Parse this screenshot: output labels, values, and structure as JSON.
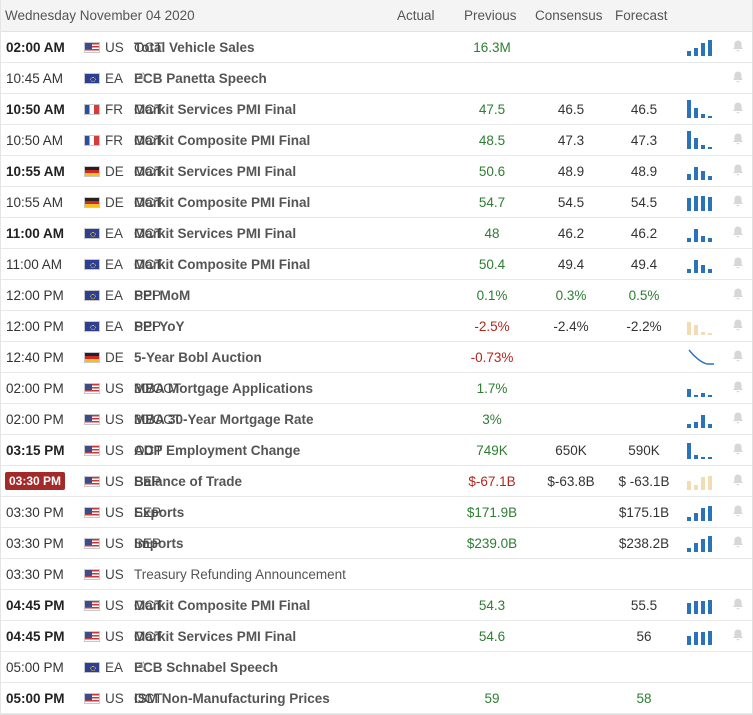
{
  "header": {
    "date": "Wednesday November 04 2020",
    "actual": "Actual",
    "previous": "Previous",
    "consensus": "Consensus",
    "forecast": "Forecast"
  },
  "colors": {
    "positive": "#2e7d32",
    "negative": "#b3261e",
    "bar_blue": "#2a73b8",
    "bar_tan": "#f1dcb4",
    "live_badge": "#a42a2a"
  },
  "events": [
    {
      "time": "02:00 AM",
      "bold": true,
      "country": "US",
      "name": "Total Vehicle Sales",
      "ref": "OCT",
      "previous": "16.3M",
      "prev_cls": "pos",
      "consensus": "",
      "forecast": "",
      "chart": [
        0.3,
        0.45,
        0.7,
        0.9
      ],
      "chart_color": "blue"
    },
    {
      "time": "10:45 AM",
      "bold": false,
      "country": "EA",
      "name": "ECB Panetta Speech",
      "ref": "",
      "speech": true,
      "previous": "",
      "consensus": "",
      "forecast": "",
      "chart": []
    },
    {
      "time": "10:50 AM",
      "bold": true,
      "country": "FR",
      "name": "Markit Services PMI Final",
      "ref": "OCT",
      "previous": "47.5",
      "prev_cls": "pos",
      "consensus": "46.5",
      "forecast": "46.5",
      "chart": [
        1,
        0.55,
        0.2,
        0.1
      ],
      "chart_color": "blue"
    },
    {
      "time": "10:50 AM",
      "bold": false,
      "country": "FR",
      "name": "Markit Composite PMI Final",
      "ref": "OCT",
      "previous": "48.5",
      "prev_cls": "pos",
      "consensus": "47.3",
      "forecast": "47.3",
      "chart": [
        1,
        0.6,
        0.25,
        0.1
      ],
      "chart_color": "blue"
    },
    {
      "time": "10:55 AM",
      "bold": true,
      "country": "DE",
      "name": "Markit Services PMI Final",
      "ref": "OCT",
      "previous": "50.6",
      "prev_cls": "pos",
      "consensus": "48.9",
      "forecast": "48.9",
      "chart": [
        0.35,
        0.75,
        0.5,
        0.25
      ],
      "chart_color": "blue"
    },
    {
      "time": "10:55 AM",
      "bold": false,
      "country": "DE",
      "name": "Markit Composite PMI Final",
      "ref": "OCT",
      "previous": "54.7",
      "prev_cls": "pos",
      "consensus": "54.5",
      "forecast": "54.5",
      "chart": [
        0.7,
        0.85,
        0.85,
        0.8
      ],
      "chart_color": "blue"
    },
    {
      "time": "11:00 AM",
      "bold": true,
      "country": "EA",
      "name": "Markit Services PMI Final",
      "ref": "OCT",
      "previous": "48",
      "prev_cls": "pos",
      "consensus": "46.2",
      "forecast": "46.2",
      "chart": [
        0.25,
        0.7,
        0.35,
        0.2
      ],
      "chart_color": "blue"
    },
    {
      "time": "11:00 AM",
      "bold": false,
      "country": "EA",
      "name": "Markit Composite PMI Final",
      "ref": "OCT",
      "previous": "50.4",
      "prev_cls": "pos",
      "consensus": "49.4",
      "forecast": "49.4",
      "chart": [
        0.2,
        0.7,
        0.45,
        0.2
      ],
      "chart_color": "blue"
    },
    {
      "time": "12:00 PM",
      "bold": false,
      "country": "EA",
      "name": "PPI MoM",
      "ref": "SEP",
      "previous": "0.1%",
      "prev_cls": "pos",
      "consensus": "0.3%",
      "cons_cls": "pos",
      "forecast": "0.5%",
      "fc_cls": "pos",
      "chart": [],
      "chart_color": "blue"
    },
    {
      "time": "12:00 PM",
      "bold": false,
      "country": "EA",
      "name": "PPI YoY",
      "ref": "SEP",
      "previous": "-2.5%",
      "prev_cls": "neg",
      "consensus": "-2.4%",
      "forecast": "-2.2%",
      "chart": [
        0.7,
        0.55,
        0.15,
        0.1
      ],
      "chart_color": "tan"
    },
    {
      "time": "12:40 PM",
      "bold": false,
      "country": "DE",
      "name": "5-Year Bobl Auction",
      "ref": "",
      "previous": "-0.73%",
      "prev_cls": "neg",
      "consensus": "",
      "forecast": "",
      "chart": [],
      "line": true
    },
    {
      "time": "02:00 PM",
      "bold": false,
      "country": "US",
      "name": "MBA Mortgage Applications",
      "ref": "30/OCT",
      "previous": "1.7%",
      "prev_cls": "pos",
      "consensus": "",
      "forecast": "",
      "chart": [
        0.45,
        0.1,
        0.25,
        0.1
      ],
      "chart_color": "blue"
    },
    {
      "time": "02:00 PM",
      "bold": false,
      "country": "US",
      "name": "MBA 30-Year Mortgage Rate",
      "ref": "30/OCT",
      "previous": "3%",
      "prev_cls": "pos",
      "consensus": "",
      "forecast": "",
      "chart": [
        0.2,
        0.35,
        0.7,
        0.25
      ],
      "chart_color": "blue"
    },
    {
      "time": "03:15 PM",
      "bold": true,
      "country": "US",
      "name": "ADP Employment Change",
      "ref": "OCT",
      "previous": "749K",
      "prev_cls": "pos",
      "consensus": "650K",
      "forecast": "590K",
      "chart": [
        0.9,
        0.2,
        0.1,
        0.1
      ],
      "chart_color": "blue"
    },
    {
      "time": "03:30 PM",
      "live": true,
      "country": "US",
      "name": "Balance of Trade",
      "ref": "SEP",
      "previous": "$-67.1B",
      "prev_cls": "neg",
      "consensus": "$-63.8B",
      "forecast": "$ -63.1B",
      "chart": [
        0.5,
        0.3,
        0.75,
        0.8
      ],
      "chart_color": "tan"
    },
    {
      "time": "03:30 PM",
      "bold": false,
      "country": "US",
      "name": "Exports",
      "ref": "SEP",
      "previous": "$171.9B",
      "prev_cls": "pos",
      "consensus": "",
      "forecast": "$175.1B",
      "chart": [
        0.25,
        0.45,
        0.7,
        0.85
      ],
      "chart_color": "blue"
    },
    {
      "time": "03:30 PM",
      "bold": false,
      "country": "US",
      "name": "Imports",
      "ref": "SEP",
      "previous": "$239.0B",
      "prev_cls": "pos",
      "consensus": "",
      "forecast": "$238.2B",
      "chart": [
        0.25,
        0.5,
        0.7,
        0.9
      ],
      "chart_color": "blue"
    },
    {
      "time": "03:30 PM",
      "bold": false,
      "country": "US",
      "name": "Treasury Refunding Announcement",
      "ref": "",
      "normal": true,
      "previous": "",
      "consensus": "",
      "forecast": "",
      "chart": [],
      "nobell": true
    },
    {
      "time": "04:45 PM",
      "bold": true,
      "country": "US",
      "name": "Markit Composite PMI Final",
      "ref": "OCT",
      "previous": "54.3",
      "prev_cls": "pos",
      "consensus": "",
      "forecast": "55.5",
      "chart": [
        0.6,
        0.75,
        0.75,
        0.8
      ],
      "chart_color": "blue"
    },
    {
      "time": "04:45 PM",
      "bold": true,
      "country": "US",
      "name": "Markit Services PMI Final",
      "ref": "OCT",
      "previous": "54.6",
      "prev_cls": "pos",
      "consensus": "",
      "forecast": "56",
      "chart": [
        0.5,
        0.7,
        0.75,
        0.8
      ],
      "chart_color": "blue"
    },
    {
      "time": "05:00 PM",
      "bold": false,
      "country": "EA",
      "name": "ECB Schnabel Speech",
      "ref": "",
      "speech": true,
      "previous": "",
      "consensus": "",
      "forecast": "",
      "chart": [],
      "nobell": true
    },
    {
      "time": "05:00 PM",
      "bold": true,
      "country": "US",
      "name": "ISM Non-Manufacturing Prices",
      "ref": "OCT",
      "previous": "59",
      "prev_cls": "pos",
      "consensus": "",
      "forecast": "58",
      "fc_cls": "pos",
      "chart": [],
      "nobell": true
    }
  ]
}
